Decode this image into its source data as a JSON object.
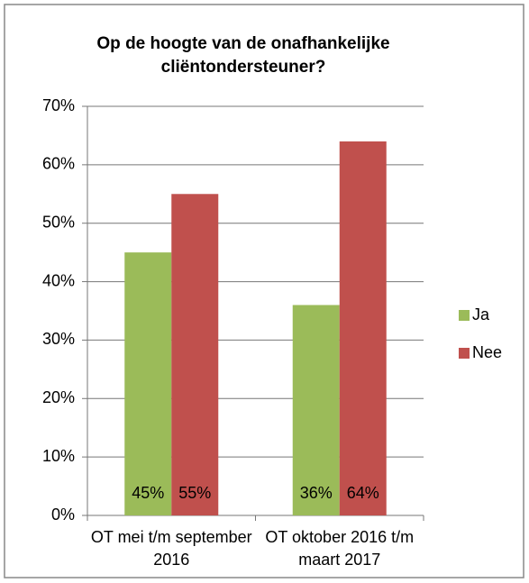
{
  "chart_data": {
    "type": "bar",
    "title": "Op de hoogte van de onafhankelijke cliëntondersteuner?",
    "categories": [
      "OT mei t/m september 2016",
      "OT oktober 2016 t/m maart 2017"
    ],
    "series": [
      {
        "name": "Ja",
        "color": "#9bbb59",
        "values": [
          45,
          36
        ],
        "value_labels": [
          "45%",
          "36%"
        ]
      },
      {
        "name": "Nee",
        "color": "#c0504d",
        "values": [
          55,
          64
        ],
        "value_labels": [
          "55%",
          "64%"
        ]
      }
    ],
    "ylim": [
      0,
      70
    ],
    "yticks": [
      {
        "value": 0,
        "label": "0%"
      },
      {
        "value": 10,
        "label": "10%"
      },
      {
        "value": 20,
        "label": "20%"
      },
      {
        "value": 30,
        "label": "30%"
      },
      {
        "value": 40,
        "label": "40%"
      },
      {
        "value": 50,
        "label": "50%"
      },
      {
        "value": 60,
        "label": "60%"
      },
      {
        "value": 70,
        "label": "70%"
      }
    ],
    "grid": true,
    "legend": "right"
  }
}
